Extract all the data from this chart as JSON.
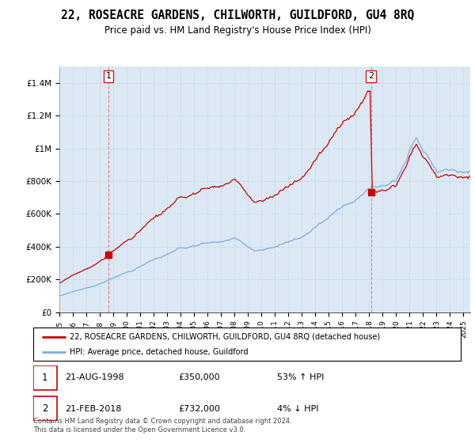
{
  "title": "22, ROSEACRE GARDENS, CHILWORTH, GUILDFORD, GU4 8RQ",
  "subtitle": "Price paid vs. HM Land Registry's House Price Index (HPI)",
  "title_fontsize": 10.5,
  "subtitle_fontsize": 8.5,
  "background_color": "#ffffff",
  "plot_bg_color": "#dce9f5",
  "grid_color": "#b0c8e0",
  "ylim": [
    0,
    1500000
  ],
  "yticks": [
    0,
    200000,
    400000,
    600000,
    800000,
    1000000,
    1200000,
    1400000
  ],
  "ytick_labels": [
    "£0",
    "£200K",
    "£400K",
    "£600K",
    "£800K",
    "£1M",
    "£1.2M",
    "£1.4M"
  ],
  "purchase1_year": 1998.64,
  "purchase1_price": 350000,
  "purchase2_year": 2018.13,
  "purchase2_price": 732000,
  "house_line_color": "#cc0000",
  "hpi_line_color": "#7aace0",
  "legend_house_label": "22, ROSEACRE GARDENS, CHILWORTH, GUILDFORD, GU4 8RQ (detached house)",
  "legend_hpi_label": "HPI: Average price, detached house, Guildford",
  "footer_text": "Contains HM Land Registry data © Crown copyright and database right 2024.\nThis data is licensed under the Open Government Licence v3.0.",
  "table_row1": [
    "1",
    "21-AUG-1998",
    "£350,000",
    "53% ↑ HPI"
  ],
  "table_row2": [
    "2",
    "21-FEB-2018",
    "£732,000",
    "4% ↓ HPI"
  ]
}
